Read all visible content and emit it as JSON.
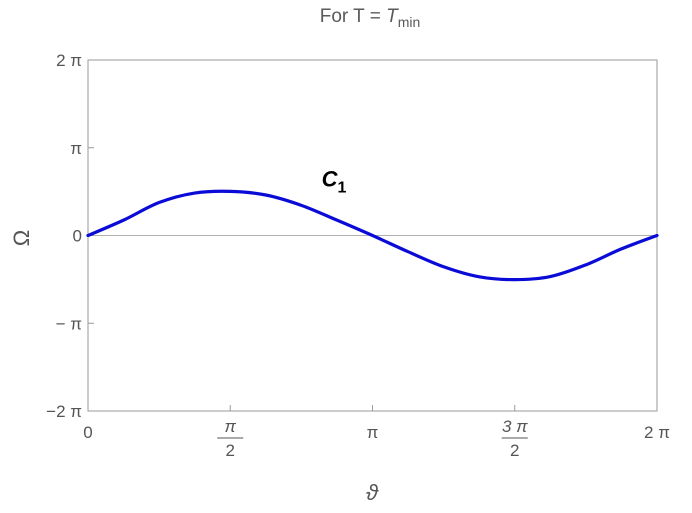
{
  "chart_data": {
    "type": "line",
    "title": {
      "prefix": "For  T = ",
      "symbol": "T",
      "subscript": "min"
    },
    "xlabel": "ϑ",
    "ylabel": "Ω",
    "xlim": [
      0,
      6.283185307
    ],
    "ylim": [
      -6.283185307,
      6.283185307
    ],
    "grid": false,
    "x_ticks": [
      {
        "value": 0,
        "num": "0",
        "den": ""
      },
      {
        "value": 1.570796327,
        "num": "π",
        "den": "2"
      },
      {
        "value": 3.141592654,
        "num": "π",
        "den": ""
      },
      {
        "value": 4.71238898,
        "num": "3 π",
        "den": "2"
      },
      {
        "value": 6.283185307,
        "num": "2 π",
        "den": ""
      }
    ],
    "y_ticks": [
      {
        "value": 6.283185307,
        "label": "2 π"
      },
      {
        "value": 3.141592654,
        "label": "π"
      },
      {
        "value": 0,
        "label": "0"
      },
      {
        "value": -3.141592654,
        "label": "− π"
      },
      {
        "value": -6.283185307,
        "label": "−2 π"
      }
    ],
    "series": [
      {
        "name": "C",
        "name_subscript": "1",
        "color": "#0b0bd8",
        "x": [
          0,
          0.393,
          0.785,
          1.178,
          1.571,
          1.963,
          2.356,
          2.749,
          3.142,
          3.534,
          3.927,
          4.32,
          4.712,
          5.105,
          5.498,
          5.89,
          6.283
        ],
        "y": [
          0,
          0.55,
          1.18,
          1.52,
          1.58,
          1.45,
          1.08,
          0.55,
          0,
          -0.58,
          -1.12,
          -1.48,
          -1.58,
          -1.47,
          -1.05,
          -0.48,
          0
        ]
      }
    ],
    "label_position": {
      "x": 2.58,
      "y": 1.75
    }
  }
}
